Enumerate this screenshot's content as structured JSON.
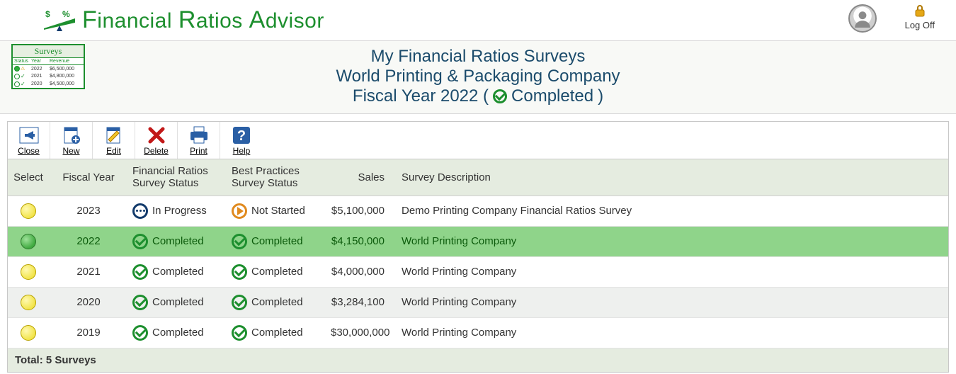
{
  "brand": {
    "name_html": "Financial Ratios Advisor",
    "accent_color": "#1d8f2e"
  },
  "header": {
    "logoff_label": "Log Off"
  },
  "mini_card": {
    "title": "Surveys",
    "head_status": "Status",
    "head_year": "Year",
    "head_rev": "Revenue",
    "rows": [
      {
        "dot": "#2fae3a",
        "year": "2022",
        "rev": "$6,500,000",
        "check": false,
        "warn": true
      },
      {
        "dot": "#ffffff",
        "year": "2021",
        "rev": "$4,800,000",
        "check": true,
        "warn": false
      },
      {
        "dot": "#ffffff",
        "year": "2020",
        "rev": "$4,500,000",
        "check": true,
        "warn": false
      }
    ]
  },
  "titles": {
    "line1": "My Financial Ratios Surveys",
    "line2": "World Printing & Packaging Company",
    "line3_pre": "Fiscal Year 2022 (",
    "line3_status": "Completed",
    "line3_post": ")",
    "title_color": "#1b4b6b"
  },
  "toolbar": {
    "close": "Close",
    "new": "New",
    "edit": "Edit",
    "delete": "Delete",
    "print": "Print",
    "help": "Help"
  },
  "table": {
    "columns": {
      "select": "Select",
      "year": "Fiscal Year",
      "fr_status": "Financial Ratios Survey Status",
      "bp_status": "Best Practices Survey Status",
      "sales": "Sales",
      "desc": "Survey Description"
    },
    "status_labels": {
      "completed": "Completed",
      "in_progress": "In Progress",
      "not_started": "Not Started"
    },
    "rows": [
      {
        "selected": false,
        "year": "2023",
        "fr": "in_progress",
        "bp": "not_started",
        "sales": "$5,100,000",
        "desc": "Demo Printing Company Financial Ratios Survey"
      },
      {
        "selected": true,
        "year": "2022",
        "fr": "completed",
        "bp": "completed",
        "sales": "$4,150,000",
        "desc": "World Printing Company"
      },
      {
        "selected": false,
        "year": "2021",
        "fr": "completed",
        "bp": "completed",
        "sales": "$4,000,000",
        "desc": "World Printing Company"
      },
      {
        "selected": false,
        "year": "2020",
        "fr": "completed",
        "bp": "completed",
        "sales": "$3,284,100",
        "desc": "World Printing Company"
      },
      {
        "selected": false,
        "year": "2019",
        "fr": "completed",
        "bp": "completed",
        "sales": "$30,000,000",
        "desc": "World Printing Company"
      }
    ],
    "footer": "Total: 5 Surveys",
    "colors": {
      "header_bg": "#e5ece0",
      "row_alt_bg": "#eef0ee",
      "row_sel_bg": "#8fd48a",
      "completed": "#1d8f2e",
      "in_progress": "#123a6b",
      "not_started": "#e08a1f"
    }
  }
}
